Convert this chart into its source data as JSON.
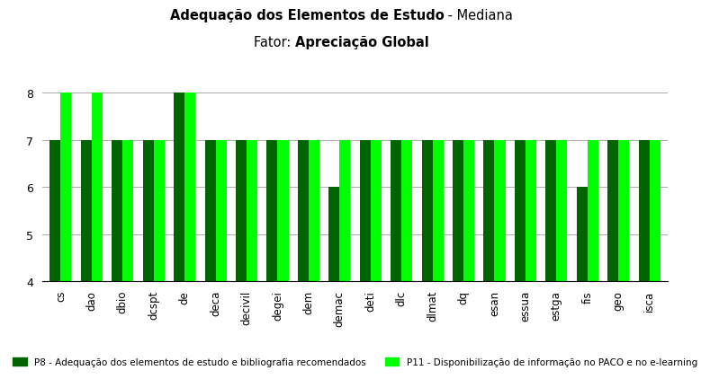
{
  "categories": [
    "cs",
    "dao",
    "dbio",
    "dcspt",
    "de",
    "deca",
    "decivil",
    "degei",
    "dem",
    "demac",
    "deti",
    "dlc",
    "dlmat",
    "dq",
    "esan",
    "essua",
    "estga",
    "fis",
    "geo",
    "isca"
  ],
  "p8_values": [
    7,
    7,
    7,
    7,
    8,
    7,
    7,
    7,
    7,
    6,
    7,
    7,
    7,
    7,
    7,
    7,
    7,
    6,
    7,
    7
  ],
  "p11_values": [
    8,
    8,
    7,
    7,
    8,
    7,
    7,
    7,
    7,
    7,
    7,
    7,
    7,
    7,
    7,
    7,
    7,
    7,
    7,
    7
  ],
  "p8_color": "#006400",
  "p11_color": "#00FF00",
  "ylim_min": 4,
  "ylim_max": 8.5,
  "yticks": [
    4,
    5,
    6,
    7,
    8
  ],
  "p8_label": "P8 - Adequação dos elementos de estudo e bibliografia recomendados",
  "p11_label": "P11 - Disponibilização de informação no PACO e no e-learning",
  "title_bold": "Adequação dos Elementos de Estudo",
  "title_normal": " - Mediana",
  "subtitle_normal": "Fator: ",
  "subtitle_bold": "Apreciação Global",
  "background_color": "#FFFFFF",
  "grid_color": "#AAAAAA"
}
